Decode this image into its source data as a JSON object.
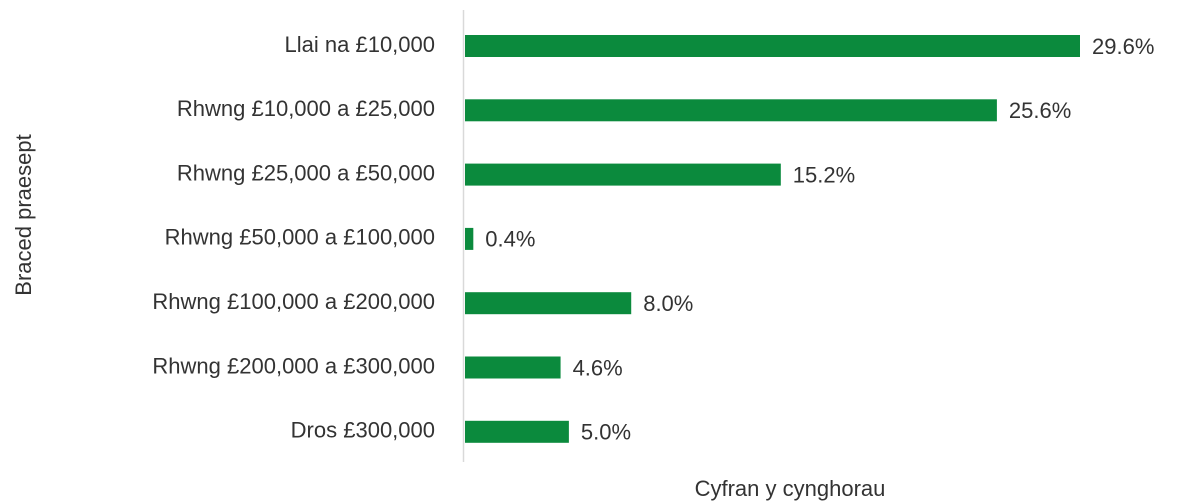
{
  "chart_data": {
    "type": "bar",
    "orientation": "horizontal",
    "xlabel": "Cyfran y cynghorau",
    "ylabel": "Braced praesept",
    "categories": [
      "Llai na £10,000",
      "Rhwng £10,000 a £25,000",
      "Rhwng £25,000 a £50,000",
      "Rhwng £50,000 a £100,000",
      "Rhwng £100,000 a £200,000",
      "Rhwng £200,000 a £300,000",
      "Dros £300,000"
    ],
    "values": [
      29.6,
      25.6,
      15.2,
      0.4,
      8.0,
      4.6,
      5.0
    ],
    "value_labels": [
      "29.6%",
      "25.6%",
      "15.2%",
      "0.4%",
      "8.0%",
      "4.6%",
      "5.0%"
    ],
    "color": "#0b8a3d"
  }
}
